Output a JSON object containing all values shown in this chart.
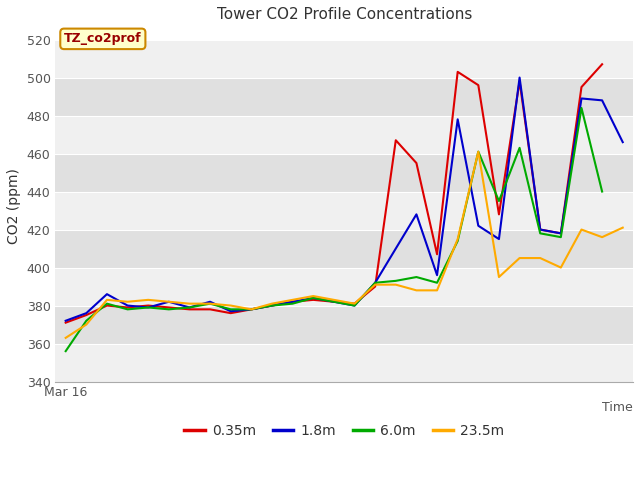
{
  "title": "Tower CO2 Profile Concentrations",
  "ylabel": "CO2 (ppm)",
  "xlabel_text": "Time",
  "xstart_label": "Mar 16",
  "annotation_label": "TZ_co2prof",
  "annotation_bg": "#ffffcc",
  "annotation_border": "#cc8800",
  "ylim": [
    340,
    525
  ],
  "yticks": [
    340,
    360,
    380,
    400,
    420,
    440,
    460,
    480,
    500,
    520
  ],
  "fig_bg": "#ffffff",
  "plot_bg_light": "#f0f0f0",
  "plot_bg_dark": "#e0e0e0",
  "series": {
    "0.35m": {
      "color": "#dd0000",
      "values": [
        371,
        375,
        380,
        379,
        380,
        379,
        378,
        378,
        376,
        378,
        380,
        382,
        383,
        382,
        381,
        390,
        467,
        455,
        407,
        503,
        496,
        428,
        498,
        420,
        418,
        495,
        507
      ]
    },
    "1.8m": {
      "color": "#0000cc",
      "values": [
        372,
        376,
        386,
        380,
        379,
        382,
        379,
        382,
        377,
        378,
        380,
        382,
        384,
        382,
        380,
        392,
        410,
        428,
        396,
        478,
        422,
        415,
        500,
        420,
        418,
        489,
        488,
        466
      ]
    },
    "6.0m": {
      "color": "#00aa00",
      "values": [
        356,
        372,
        381,
        378,
        379,
        378,
        379,
        381,
        378,
        378,
        380,
        381,
        384,
        382,
        380,
        392,
        393,
        395,
        392,
        414,
        461,
        435,
        463,
        418,
        416,
        484,
        440
      ]
    },
    "23.5m": {
      "color": "#ffaa00",
      "values": [
        363,
        370,
        383,
        382,
        383,
        382,
        381,
        381,
        380,
        378,
        381,
        383,
        385,
        383,
        381,
        391,
        391,
        388,
        388,
        415,
        461,
        395,
        405,
        405,
        400,
        420,
        416,
        421
      ]
    }
  },
  "legend_entries": [
    "0.35m",
    "1.8m",
    "6.0m",
    "23.5m"
  ],
  "legend_colors": [
    "#dd0000",
    "#0000cc",
    "#00aa00",
    "#ffaa00"
  ]
}
